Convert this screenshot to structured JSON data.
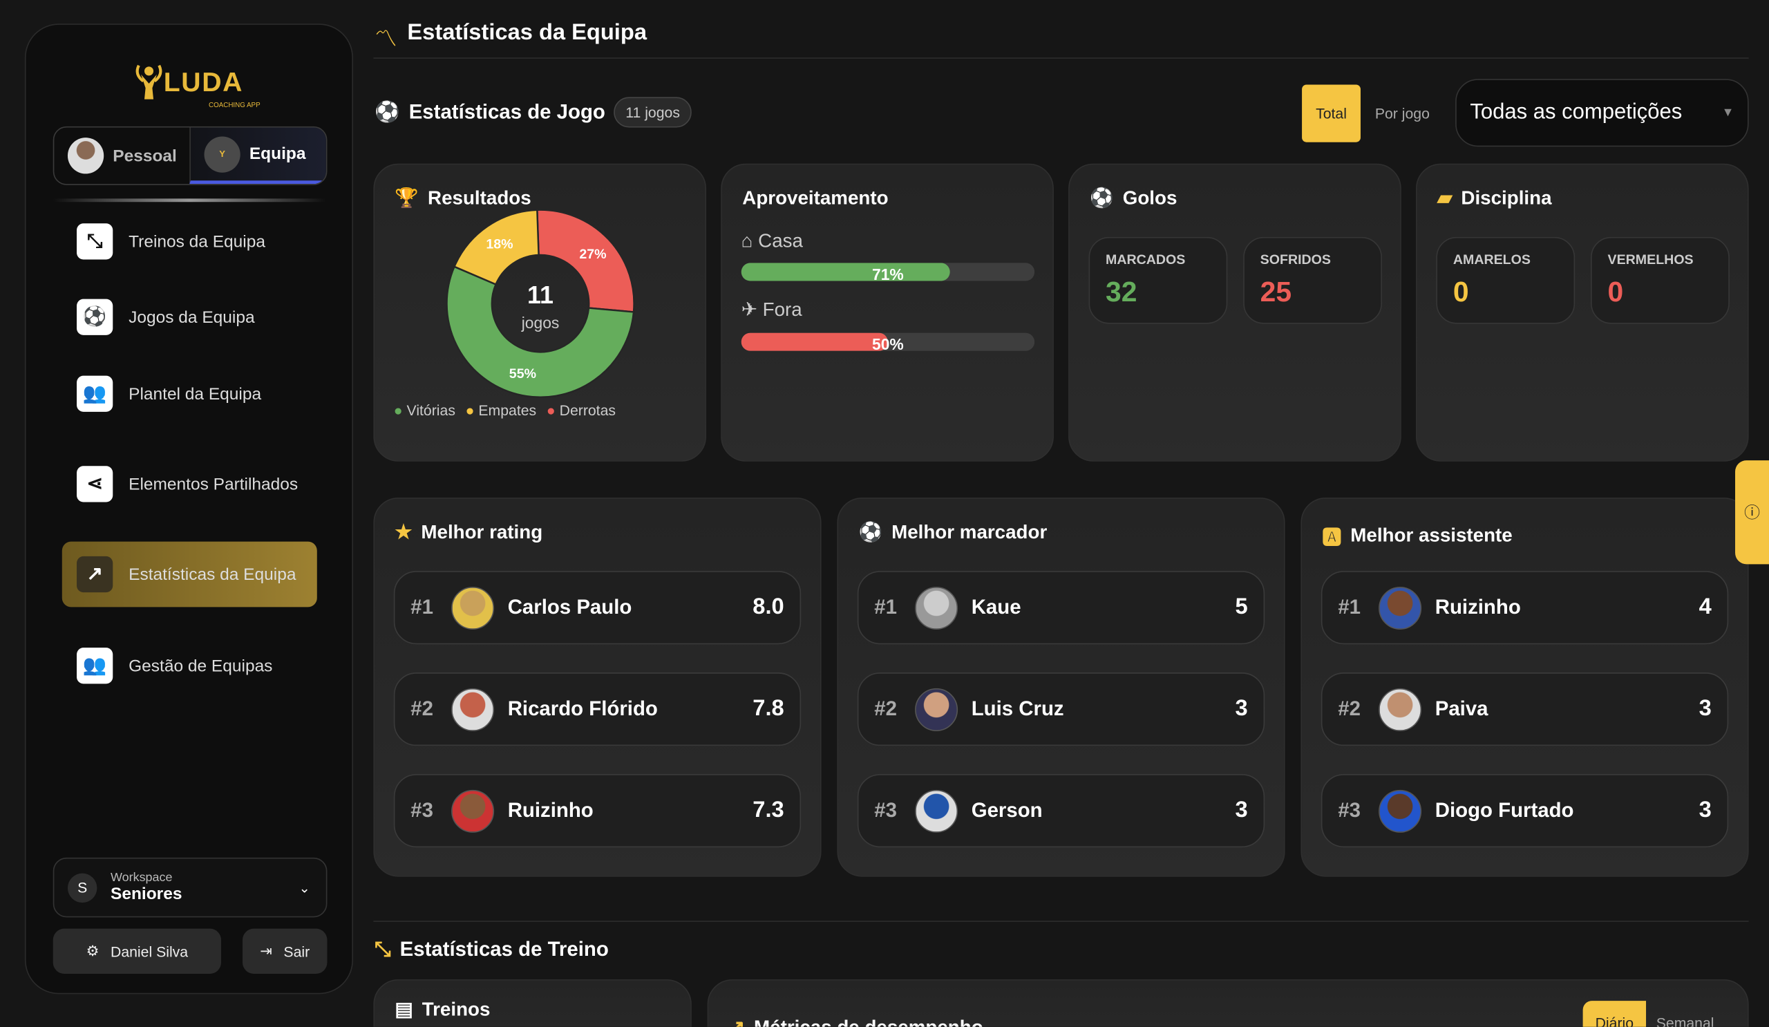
{
  "sidebar": {
    "logo_text": "LUDA",
    "logo_sub": "COACHING APP",
    "toggle": [
      {
        "label": "Pessoal",
        "active": false
      },
      {
        "label": "Equipa",
        "active": true
      }
    ],
    "nav": [
      {
        "label": "Treinos da Equipa",
        "icon": "drill-icon",
        "active": false
      },
      {
        "label": "Jogos da Equipa",
        "icon": "soccer-ball-icon",
        "active": false
      },
      {
        "label": "Plantel da Equipa",
        "icon": "group-icon",
        "active": false
      },
      {
        "label": "Elementos Partilhados",
        "icon": "share-icon",
        "active": false
      },
      {
        "label": "Estatísticas da Equipa",
        "icon": "stats-icon",
        "active": true
      },
      {
        "label": "Gestão de Equipas",
        "icon": "group-icon",
        "active": false
      }
    ],
    "workspace": {
      "initial": "S",
      "label": "Workspace",
      "value": "Seniores"
    },
    "user_button": "Daniel Silva",
    "logout_button": "Sair"
  },
  "header": {
    "title": "Estatísticas da Equipa"
  },
  "game_stats": {
    "title": "Estatísticas de Jogo",
    "badge": "11 jogos",
    "mode_tabs": [
      {
        "label": "Total",
        "active": true
      },
      {
        "label": "Por jogo",
        "active": false
      }
    ],
    "competition_select": "Todas as competições",
    "results": {
      "title": "Resultados",
      "center_value": "11",
      "center_label": "jogos",
      "slices": [
        {
          "label": "Derrotas",
          "pct": 27,
          "text": "27%",
          "color": "#ec5d57"
        },
        {
          "label": "Vitórias",
          "pct": 55,
          "text": "55%",
          "color": "#65ad5c"
        },
        {
          "label": "Empates",
          "pct": 18,
          "text": "18%",
          "color": "#f5c542"
        }
      ],
      "legend": [
        "Vitórias",
        "Empates",
        "Derrotas"
      ]
    },
    "performance": {
      "title": "Aproveitamento",
      "home": {
        "label": "Casa",
        "pct": 71,
        "text": "71%",
        "color": "#65ad5c"
      },
      "away": {
        "label": "Fora",
        "pct": 50,
        "text": "50%",
        "color": "#ec5d57"
      }
    },
    "goals": {
      "title": "Golos",
      "scored_label": "MARCADOS",
      "scored": "32",
      "conceded_label": "SOFRIDOS",
      "conceded": "25"
    },
    "discipline": {
      "title": "Disciplina",
      "yellow_label": "AMARELOS",
      "yellow": "0",
      "red_label": "VERMELHOS",
      "red": "0"
    }
  },
  "leaders": [
    {
      "title": "Melhor rating",
      "icon": "star-icon",
      "rows": [
        {
          "rank": "#1",
          "name": "Carlos Paulo",
          "value": "8.0"
        },
        {
          "rank": "#2",
          "name": "Ricardo Flórido",
          "value": "7.8"
        },
        {
          "rank": "#3",
          "name": "Ruizinho",
          "value": "7.3"
        }
      ]
    },
    {
      "title": "Melhor marcador",
      "icon": "soccer-ball-icon",
      "rows": [
        {
          "rank": "#1",
          "name": "Kaue",
          "value": "5"
        },
        {
          "rank": "#2",
          "name": "Luis Cruz",
          "value": "3"
        },
        {
          "rank": "#3",
          "name": "Gerson",
          "value": "3"
        }
      ]
    },
    {
      "title": "Melhor assistente",
      "icon": "assist-icon",
      "rows": [
        {
          "rank": "#1",
          "name": "Ruizinho",
          "value": "4"
        },
        {
          "rank": "#2",
          "name": "Paiva",
          "value": "3"
        },
        {
          "rank": "#3",
          "name": "Diogo Furtado",
          "value": "3"
        }
      ]
    }
  ],
  "training": {
    "title": "Estatísticas de Treino",
    "card1_title": "Treinos",
    "card2_title": "Métricas de desempenho",
    "tabs": [
      "Diário",
      "Semanal"
    ]
  },
  "colors": {
    "accent": "#f5c542",
    "green": "#65ad5c",
    "red": "#ec5d57"
  }
}
